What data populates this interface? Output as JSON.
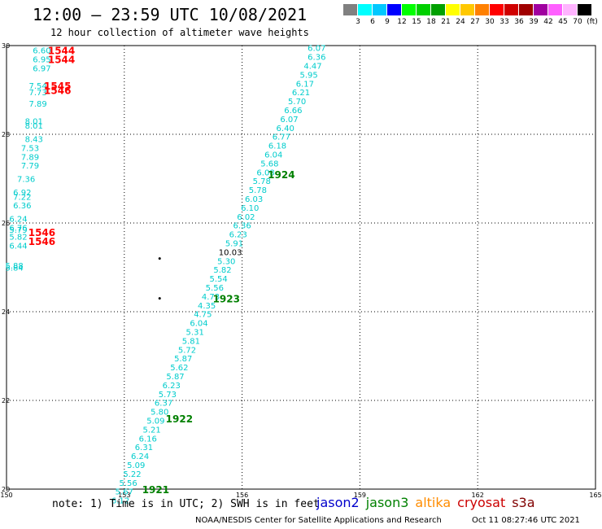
{
  "header": {
    "title": "12:00 – 23:59 UTC 10/08/2021",
    "subtitle": "12 hour collection of altimeter wave heights"
  },
  "color_scale": {
    "colors": [
      "#808080",
      "#00ffff",
      "#00c8ff",
      "#0000ff",
      "#00ff00",
      "#00d000",
      "#00a000",
      "#ffff00",
      "#ffc800",
      "#ff8000",
      "#ff0000",
      "#d00000",
      "#a00000",
      "#a000a0",
      "#ff60ff",
      "#ffb4ff",
      "#000000"
    ],
    "labels": [
      "3",
      "6",
      "9",
      "12",
      "15",
      "18",
      "21",
      "24",
      "27",
      "30",
      "33",
      "36",
      "39",
      "42",
      "45",
      "70",
      "(ft)"
    ]
  },
  "axes": {
    "lon_labels": [
      "150",
      "153",
      "156",
      "159",
      "162",
      "165"
    ],
    "lat_labels": [
      "20",
      "22",
      "24",
      "26",
      "28",
      "30"
    ]
  },
  "pass_labels": [
    {
      "text": "1544",
      "lon": 151.4,
      "lat": 29.9,
      "color": "#ff0000"
    },
    {
      "text": "1544",
      "lon": 151.4,
      "lat": 29.7,
      "color": "#ff0000"
    },
    {
      "text": "1545",
      "lon": 151.3,
      "lat": 29.1,
      "color": "#ff0000"
    },
    {
      "text": "1546",
      "lon": 151.3,
      "lat": 29.0,
      "color": "#ff0000"
    },
    {
      "text": "1546",
      "lon": 150.9,
      "lat": 25.8,
      "color": "#ff0000"
    },
    {
      "text": "1546",
      "lon": 150.9,
      "lat": 25.6,
      "color": "#ff0000"
    },
    {
      "text": "1924",
      "lon": 157.0,
      "lat": 27.1,
      "color": "#008000"
    },
    {
      "text": "1923",
      "lon": 155.6,
      "lat": 24.3,
      "color": "#008000"
    },
    {
      "text": "1922",
      "lon": 154.4,
      "lat": 21.6,
      "color": "#008000"
    },
    {
      "text": "1921",
      "lon": 153.8,
      "lat": 20.0,
      "color": "#008000"
    }
  ],
  "wave_heights": {
    "track_east": [
      {
        "v": "6.07",
        "lon": 157.9,
        "lat": 29.95
      },
      {
        "v": "6.36",
        "lon": 157.9,
        "lat": 29.75
      },
      {
        "v": "4.47",
        "lon": 157.8,
        "lat": 29.55
      },
      {
        "v": "5.95",
        "lon": 157.7,
        "lat": 29.35
      },
      {
        "v": "6.17",
        "lon": 157.6,
        "lat": 29.15
      },
      {
        "v": "6.21",
        "lon": 157.5,
        "lat": 28.95
      },
      {
        "v": "5.70",
        "lon": 157.4,
        "lat": 28.75
      },
      {
        "v": "6.66",
        "lon": 157.3,
        "lat": 28.55
      },
      {
        "v": "6.07",
        "lon": 157.2,
        "lat": 28.35
      },
      {
        "v": "6.40",
        "lon": 157.1,
        "lat": 28.15
      },
      {
        "v": "6.77",
        "lon": 157.0,
        "lat": 27.95
      },
      {
        "v": "6.18",
        "lon": 156.9,
        "lat": 27.75
      },
      {
        "v": "6.04",
        "lon": 156.8,
        "lat": 27.55
      },
      {
        "v": "5.68",
        "lon": 156.7,
        "lat": 27.35
      },
      {
        "v": "6.08",
        "lon": 156.6,
        "lat": 27.15
      },
      {
        "v": "5.78",
        "lon": 156.5,
        "lat": 26.95
      },
      {
        "v": "5.78",
        "lon": 156.4,
        "lat": 26.75
      },
      {
        "v": "6.03",
        "lon": 156.3,
        "lat": 26.55
      },
      {
        "v": "6.10",
        "lon": 156.2,
        "lat": 26.35
      },
      {
        "v": "6.02",
        "lon": 156.1,
        "lat": 26.15
      },
      {
        "v": "6.36",
        "lon": 156.0,
        "lat": 25.95
      },
      {
        "v": "6.23",
        "lon": 155.9,
        "lat": 25.75
      },
      {
        "v": "5.91",
        "lon": 155.8,
        "lat": 25.55
      },
      {
        "v": "10.03",
        "lon": 155.7,
        "lat": 25.35,
        "dark": true
      },
      {
        "v": "5.30",
        "lon": 155.6,
        "lat": 25.15
      },
      {
        "v": "5.82",
        "lon": 155.5,
        "lat": 24.95
      },
      {
        "v": "5.54",
        "lon": 155.4,
        "lat": 24.75
      },
      {
        "v": "5.56",
        "lon": 155.3,
        "lat": 24.55
      },
      {
        "v": "4.73",
        "lon": 155.2,
        "lat": 24.35
      },
      {
        "v": "4.35",
        "lon": 155.1,
        "lat": 24.15
      },
      {
        "v": "4.75",
        "lon": 155.0,
        "lat": 23.95
      },
      {
        "v": "6.04",
        "lon": 154.9,
        "lat": 23.75
      },
      {
        "v": "5.31",
        "lon": 154.8,
        "lat": 23.55
      },
      {
        "v": "5.81",
        "lon": 154.7,
        "lat": 23.35
      },
      {
        "v": "5.72",
        "lon": 154.6,
        "lat": 23.15
      },
      {
        "v": "5.87",
        "lon": 154.5,
        "lat": 22.95
      },
      {
        "v": "5.62",
        "lon": 154.4,
        "lat": 22.75
      },
      {
        "v": "5.87",
        "lon": 154.3,
        "lat": 22.55
      },
      {
        "v": "6.23",
        "lon": 154.2,
        "lat": 22.35
      },
      {
        "v": "5.73",
        "lon": 154.1,
        "lat": 22.15
      },
      {
        "v": "6.37",
        "lon": 154.0,
        "lat": 21.95
      },
      {
        "v": "5.80",
        "lon": 153.9,
        "lat": 21.75
      },
      {
        "v": "5.09",
        "lon": 153.8,
        "lat": 21.55
      },
      {
        "v": "5.21",
        "lon": 153.7,
        "lat": 21.35
      },
      {
        "v": "6.16",
        "lon": 153.6,
        "lat": 21.15
      },
      {
        "v": "6.31",
        "lon": 153.5,
        "lat": 20.95
      },
      {
        "v": "6.24",
        "lon": 153.4,
        "lat": 20.75
      },
      {
        "v": "5.09",
        "lon": 153.3,
        "lat": 20.55
      },
      {
        "v": "5.22",
        "lon": 153.2,
        "lat": 20.35
      },
      {
        "v": "5.56",
        "lon": 153.1,
        "lat": 20.15
      },
      {
        "v": "5.67",
        "lon": 153.0,
        "lat": 19.95
      },
      {
        "v": "6.12",
        "lon": 152.9,
        "lat": 19.75
      }
    ],
    "track_west": [
      {
        "v": "6.60",
        "lon": 150.9,
        "lat": 29.9
      },
      {
        "v": "6.95",
        "lon": 150.9,
        "lat": 29.7
      },
      {
        "v": "6.97",
        "lon": 150.9,
        "lat": 29.5
      },
      {
        "v": "7.54",
        "lon": 150.8,
        "lat": 29.1
      },
      {
        "v": "7.73",
        "lon": 150.8,
        "lat": 28.95
      },
      {
        "v": "7.89",
        "lon": 150.8,
        "lat": 28.7
      },
      {
        "v": "8.01",
        "lon": 150.7,
        "lat": 28.3
      },
      {
        "v": "8.01",
        "lon": 150.7,
        "lat": 28.2
      },
      {
        "v": "8.43",
        "lon": 150.7,
        "lat": 27.9
      },
      {
        "v": "7.53",
        "lon": 150.6,
        "lat": 27.7
      },
      {
        "v": "7.89",
        "lon": 150.6,
        "lat": 27.5
      },
      {
        "v": "7.79",
        "lon": 150.6,
        "lat": 27.3
      },
      {
        "v": "7.36",
        "lon": 150.5,
        "lat": 27.0
      },
      {
        "v": "6.92",
        "lon": 150.4,
        "lat": 26.7
      },
      {
        "v": "7.22",
        "lon": 150.4,
        "lat": 26.6
      },
      {
        "v": "6.36",
        "lon": 150.4,
        "lat": 26.4
      },
      {
        "v": "6.24",
        "lon": 150.3,
        "lat": 26.1
      },
      {
        "v": "6.76",
        "lon": 150.3,
        "lat": 25.9
      },
      {
        "v": "5.79",
        "lon": 150.3,
        "lat": 25.85
      },
      {
        "v": "5.82",
        "lon": 150.3,
        "lat": 25.7
      },
      {
        "v": "6.44",
        "lon": 150.3,
        "lat": 25.5
      },
      {
        "v": "5.88",
        "lon": 150.2,
        "lat": 25.05
      },
      {
        "v": "5.84",
        "lon": 150.2,
        "lat": 25.0
      }
    ]
  },
  "markers": [
    {
      "lon": 153.9,
      "lat": 25.2
    },
    {
      "lon": 153.9,
      "lat": 24.3
    }
  ],
  "footer": {
    "note": "note: 1) Time is in UTC; 2) SWH is in feet",
    "legend": [
      {
        "name": "jason2",
        "color": "#0000cc"
      },
      {
        "name": "jason3",
        "color": "#008000"
      },
      {
        "name": "altika",
        "color": "#ff8c00"
      },
      {
        "name": "cryosat",
        "color": "#cc0000"
      },
      {
        "name": "s3a",
        "color": "#800000"
      }
    ],
    "credit": "NOAA/NESDIS Center for Satellite Applications and Research",
    "timestamp": "Oct 11 08:27:46 UTC 2021"
  }
}
